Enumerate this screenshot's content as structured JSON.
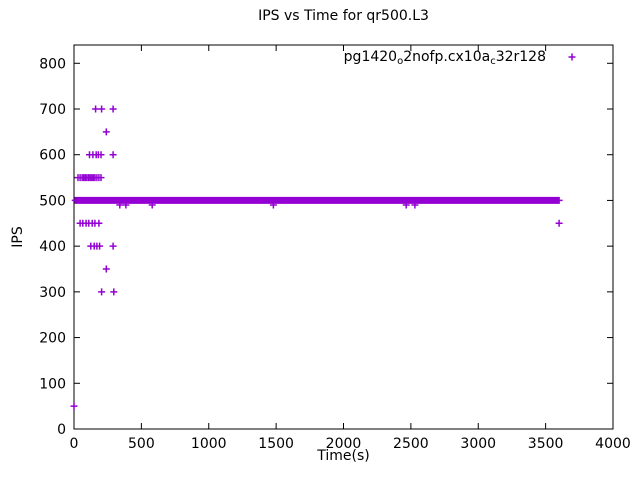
{
  "page": {
    "background": "#ffffff",
    "frame_color": "#000000",
    "text_color": "#000000"
  },
  "chart_data": {
    "type": "scatter",
    "title": "IPS vs Time for qr500.L3",
    "xlabel": "Time(s)",
    "ylabel": "IPS",
    "xlim": [
      0,
      4000
    ],
    "ylim": [
      0,
      840
    ],
    "xticks": [
      0,
      500,
      1000,
      1500,
      2000,
      2500,
      3000,
      3500,
      4000
    ],
    "yticks": [
      0,
      100,
      200,
      300,
      400,
      500,
      600,
      700,
      800
    ],
    "grid": false,
    "marker_color": "#9400d3",
    "legend": {
      "position": "top-right-inside",
      "marker": "plus-icon",
      "label_plain": "pg1420o2nofp.cx10ac32r128",
      "label_segments": [
        {
          "text": "pg1420",
          "sub": false
        },
        {
          "text": "o",
          "sub": true
        },
        {
          "text": "2nofp.cx10a",
          "sub": false
        },
        {
          "text": "c",
          "sub": true
        },
        {
          "text": "32r128",
          "sub": false
        }
      ]
    },
    "series": [
      {
        "name": "pg1420o2nofp.cx10ac32r128",
        "marker": "plus",
        "color": "#9400d3",
        "dense_band": {
          "ips": 500,
          "t_start": 10,
          "t_end": 3600,
          "t_step": 10
        },
        "points": [
          [
            160,
            700
          ],
          [
            205,
            700
          ],
          [
            290,
            700
          ],
          [
            240,
            650
          ],
          [
            115,
            600
          ],
          [
            140,
            600
          ],
          [
            165,
            600
          ],
          [
            180,
            600
          ],
          [
            200,
            600
          ],
          [
            290,
            600
          ],
          [
            30,
            550
          ],
          [
            45,
            550
          ],
          [
            60,
            550
          ],
          [
            72,
            550
          ],
          [
            84,
            550
          ],
          [
            96,
            550
          ],
          [
            108,
            550
          ],
          [
            120,
            550
          ],
          [
            132,
            550
          ],
          [
            144,
            550
          ],
          [
            156,
            550
          ],
          [
            170,
            550
          ],
          [
            185,
            550
          ],
          [
            200,
            550
          ],
          [
            340,
            490
          ],
          [
            385,
            490
          ],
          [
            580,
            490
          ],
          [
            1480,
            490
          ],
          [
            2465,
            490
          ],
          [
            2530,
            490
          ],
          [
            45,
            450
          ],
          [
            65,
            450
          ],
          [
            90,
            450
          ],
          [
            110,
            450
          ],
          [
            135,
            450
          ],
          [
            155,
            450
          ],
          [
            185,
            450
          ],
          [
            3600,
            450
          ],
          [
            125,
            400
          ],
          [
            150,
            400
          ],
          [
            170,
            400
          ],
          [
            190,
            400
          ],
          [
            290,
            400
          ],
          [
            240,
            350
          ],
          [
            205,
            300
          ],
          [
            295,
            300
          ],
          [
            0,
            50
          ]
        ]
      }
    ]
  }
}
